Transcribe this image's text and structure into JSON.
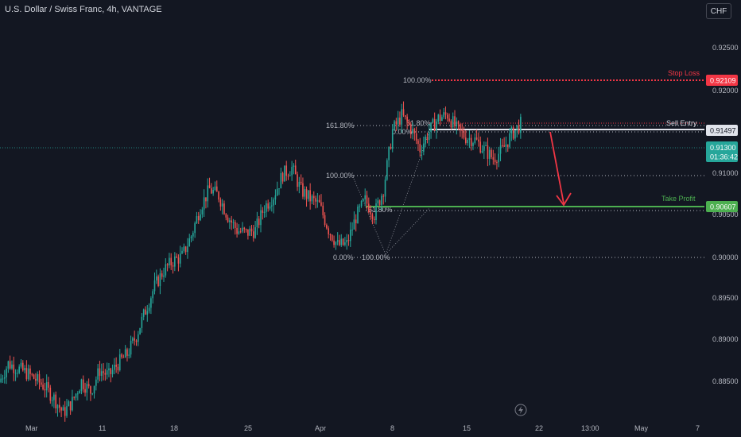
{
  "header": {
    "symbol_title": "U.S. Dollar / Swiss Franc, 4h, VANTAGE"
  },
  "currency_button": {
    "label": "CHF"
  },
  "colors": {
    "background": "#131722",
    "up": "#26a69a",
    "down": "#ef5350",
    "stop_loss": "#f23645",
    "take_profit": "#4caf50",
    "sell_entry": "#b2b5be"
  },
  "price_axis": {
    "ticks": [
      "0.92500",
      "0.92000",
      "0.91000",
      "0.90500",
      "0.90000",
      "0.89500",
      "0.89000",
      "0.88500"
    ]
  },
  "time_axis": {
    "labels": [
      "Mar",
      "11",
      "18",
      "25",
      "Apr",
      "8",
      "15",
      "22",
      "13:00",
      "May",
      "7"
    ]
  },
  "price_tags": {
    "stop_loss": "0.92109",
    "sell_entry": "0.91497",
    "current_price": "0.91300",
    "countdown": "01:36:42",
    "take_profit": "0.90607"
  },
  "lines": {
    "stop_loss_label": "Stop Loss",
    "sell_entry_label": "Sell Entry",
    "take_profit_label": "Take Profit"
  },
  "fib_labels": {
    "big_100": "100.00%",
    "big_161": "161.80%",
    "big_0_top": "0.00%",
    "big_61": "61.80%",
    "left_100": "100.00%",
    "left_0": "0.00%",
    "mid_100": "100.00%",
    "mid_61": "61.80%",
    "mid_0": "0.00%"
  },
  "icons": {
    "bolt": "lightning-icon"
  },
  "chart_data": {
    "type": "candlestick",
    "title": "U.S. Dollar / Swiss Franc, 4h, VANTAGE",
    "ylim": [
      0.8815,
      0.9265
    ],
    "levels": {
      "stop_loss": 0.92109,
      "sell_entry": 0.91497,
      "current": 0.913,
      "take_profit": 0.90607
    },
    "path": [
      0.8855,
      0.8875,
      0.887,
      0.8865,
      0.8858,
      0.885,
      0.8838,
      0.8822,
      0.8834,
      0.8856,
      0.8845,
      0.8868,
      0.8862,
      0.8875,
      0.8885,
      0.8905,
      0.8932,
      0.8958,
      0.8975,
      0.8985,
      0.899,
      0.9012,
      0.9043,
      0.9062,
      0.9055,
      0.9033,
      0.9018,
      0.9015,
      0.9018,
      0.9043,
      0.9055,
      0.9078,
      0.9085,
      0.9061,
      0.9052,
      0.9045,
      0.9019,
      0.9002,
      0.9003,
      0.9032,
      0.905,
      0.9035,
      0.9062,
      0.9125,
      0.9141,
      0.9128,
      0.9105,
      0.9124,
      0.9138,
      0.9142,
      0.9127,
      0.9118,
      0.9115,
      0.9105,
      0.9095,
      0.9104,
      0.9121,
      0.9132
    ]
  }
}
